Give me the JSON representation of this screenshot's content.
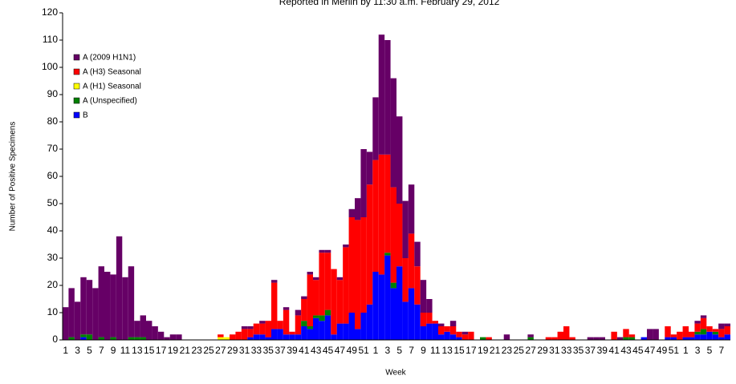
{
  "chart_data": {
    "type": "stacked_bar",
    "title": "Reported in Merlin by 11:30 a.m. February 29, 2012",
    "x_label": "Week",
    "y_label": "Number of Positive Specimens",
    "categories": [
      "1",
      null,
      "3",
      null,
      "5",
      null,
      "7",
      null,
      "9",
      null,
      "11",
      null,
      "13",
      null,
      "15",
      null,
      "17",
      null,
      "19",
      null,
      "21",
      null,
      "23",
      null,
      "25",
      null,
      "27",
      null,
      "29",
      null,
      "31",
      null,
      "33",
      null,
      "35",
      null,
      "37",
      null,
      "39",
      null,
      "41",
      null,
      "43",
      null,
      "45",
      null,
      "47",
      null,
      "49",
      null,
      "51",
      null,
      "1",
      null,
      "3",
      null,
      "5",
      null,
      "7",
      null,
      "9",
      null,
      "11",
      null,
      "13",
      null,
      "15",
      null,
      "17",
      null,
      "19",
      null,
      "21",
      null,
      "23",
      null,
      "25",
      null,
      "27",
      null,
      "29",
      null,
      "31",
      null,
      "33",
      null,
      "35",
      null,
      "37",
      null,
      "39",
      null,
      "41",
      null,
      "43",
      null,
      "45",
      null,
      "47",
      null,
      "49",
      null,
      "51",
      null,
      "1",
      null,
      "3",
      null,
      "5",
      null,
      "7",
      null
    ],
    "series": [
      {
        "name": "B",
        "color": "#0000ff",
        "values": [
          0,
          0,
          0,
          1,
          0,
          0,
          0,
          0,
          0,
          0,
          0,
          0,
          0,
          0,
          0,
          0,
          0,
          0,
          0,
          0,
          0,
          0,
          0,
          0,
          0,
          0,
          0,
          0,
          0,
          0,
          0,
          1,
          2,
          2,
          1,
          4,
          4,
          2,
          2,
          2,
          5,
          4,
          8,
          7,
          9,
          2,
          6,
          6,
          10,
          4,
          10,
          13,
          25,
          24,
          31,
          19,
          27,
          14,
          19,
          13,
          5,
          6,
          6,
          2,
          3,
          2,
          1,
          0,
          0,
          0,
          0,
          0,
          0,
          0,
          0,
          0,
          0,
          0,
          0,
          0,
          0,
          0,
          0,
          0,
          0,
          0,
          0,
          0,
          0,
          0,
          0,
          0,
          0,
          0,
          0,
          0,
          0,
          1,
          0,
          0,
          0,
          1,
          1,
          0,
          1,
          1,
          2,
          2,
          3,
          2,
          1,
          2
        ]
      },
      {
        "name": "A (Unspecified)",
        "color": "#008000",
        "values": [
          0,
          1,
          0,
          1,
          2,
          0,
          1,
          0,
          1,
          0,
          0,
          1,
          1,
          1,
          0,
          0,
          0,
          0,
          0,
          0,
          0,
          0,
          0,
          0,
          0,
          0,
          0,
          0,
          0,
          0,
          0,
          0,
          0,
          0,
          0,
          0,
          0,
          0,
          0,
          0,
          2,
          1,
          1,
          2,
          2,
          0,
          0,
          0,
          0,
          0,
          0,
          0,
          0,
          0,
          1,
          2,
          0,
          0,
          0,
          0,
          0,
          0,
          0,
          0,
          0,
          0,
          0,
          0,
          0,
          0,
          1,
          0,
          0,
          0,
          0,
          0,
          0,
          0,
          1,
          0,
          0,
          0,
          0,
          0,
          0,
          0,
          0,
          0,
          0,
          0,
          0,
          0,
          0,
          0,
          1,
          1,
          0,
          0,
          0,
          0,
          0,
          0,
          0,
          0,
          0,
          0,
          1,
          2,
          0,
          1,
          0,
          0
        ]
      },
      {
        "name": "A (H1) Seasonal",
        "color": "#ffff00",
        "values": [
          0,
          0,
          0,
          0,
          0,
          0,
          0,
          0,
          0,
          0,
          0,
          0,
          0,
          0,
          0,
          0,
          0,
          0,
          0,
          0,
          0,
          0,
          0,
          0,
          0,
          0,
          1,
          1,
          0,
          0,
          0,
          0,
          0,
          0,
          0,
          0,
          0,
          0,
          0,
          0,
          0,
          0,
          0,
          0,
          0,
          0,
          0,
          0,
          0,
          0,
          0,
          0,
          0,
          0,
          0,
          0,
          0,
          0,
          0,
          0,
          0,
          0,
          0,
          0,
          0,
          0,
          0,
          0,
          0,
          0,
          0,
          0,
          0,
          0,
          0,
          0,
          0,
          0,
          0,
          0,
          0,
          0,
          0,
          0,
          0,
          0,
          0,
          0,
          0,
          0,
          0,
          0,
          0,
          0,
          0,
          0,
          0,
          0,
          0,
          0,
          0,
          0,
          0,
          0,
          0,
          0,
          0,
          0,
          0,
          0,
          0,
          0
        ]
      },
      {
        "name": "A (H3) Seasonal",
        "color": "#ff0000",
        "values": [
          0,
          0,
          0,
          0,
          0,
          0,
          0,
          0,
          0,
          0,
          0,
          0,
          0,
          0,
          0,
          0,
          0,
          0,
          0,
          0,
          0,
          0,
          0,
          0,
          0,
          0,
          1,
          0,
          2,
          3,
          4,
          3,
          4,
          4,
          6,
          17,
          3,
          9,
          1,
          7,
          8,
          19,
          13,
          23,
          21,
          24,
          16,
          28,
          35,
          40,
          35,
          44,
          41,
          44,
          36,
          35,
          23,
          16,
          20,
          14,
          5,
          4,
          1,
          3,
          2,
          3,
          2,
          2,
          3,
          0,
          0,
          1,
          0,
          0,
          0,
          0,
          0,
          0,
          0,
          0,
          0,
          1,
          1,
          3,
          5,
          1,
          0,
          0,
          0,
          0,
          0,
          0,
          3,
          0,
          3,
          1,
          0,
          0,
          0,
          0,
          0,
          4,
          1,
          3,
          4,
          2,
          3,
          4,
          2,
          1,
          3,
          3
        ]
      },
      {
        "name": "A (2009 H1N1)",
        "color": "#660066",
        "values": [
          12,
          18,
          14,
          21,
          20,
          19,
          26,
          25,
          23,
          38,
          23,
          26,
          6,
          8,
          7,
          5,
          3,
          1,
          2,
          2,
          0,
          0,
          0,
          0,
          0,
          0,
          0,
          0,
          0,
          0,
          1,
          1,
          0,
          1,
          0,
          1,
          0,
          1,
          0,
          2,
          1,
          1,
          1,
          1,
          1,
          0,
          1,
          1,
          3,
          8,
          25,
          12,
          23,
          44,
          42,
          40,
          32,
          21,
          18,
          9,
          12,
          5,
          0,
          1,
          0,
          2,
          0,
          1,
          0,
          0,
          0,
          0,
          0,
          0,
          2,
          0,
          0,
          0,
          1,
          0,
          0,
          0,
          0,
          0,
          0,
          0,
          0,
          0,
          1,
          1,
          1,
          0,
          0,
          1,
          0,
          0,
          0,
          0,
          4,
          4,
          0,
          0,
          0,
          0,
          0,
          0,
          1,
          1,
          0,
          0,
          2,
          1
        ]
      }
    ],
    "ylim": [
      0,
      120
    ],
    "yticks": [
      0,
      10,
      20,
      30,
      40,
      50,
      60,
      70,
      80,
      90,
      100,
      110,
      120
    ],
    "grid": false,
    "legend": "upper left"
  }
}
